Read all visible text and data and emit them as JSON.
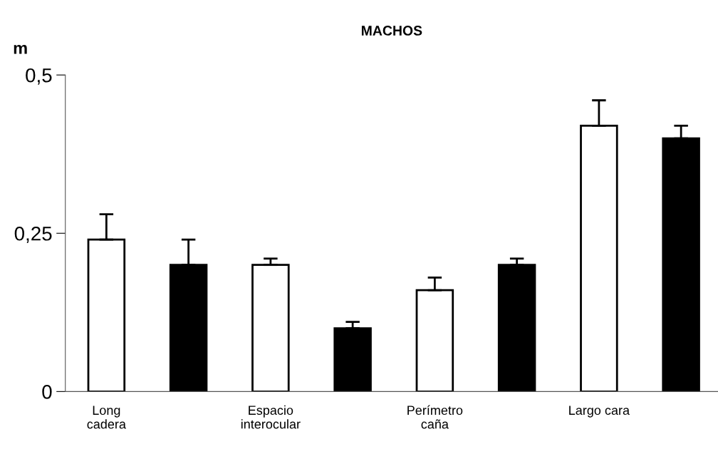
{
  "chart_data": {
    "type": "bar",
    "title": "MACHOS",
    "ylabel": "m",
    "categories": [
      "Long\ncadera",
      null,
      "Espacio\ninterocular",
      null,
      "Perímetro\ncaña",
      null,
      "Largo cara",
      null
    ],
    "values": [
      0.24,
      0.2,
      0.2,
      0.1,
      0.16,
      0.2,
      0.42,
      0.4
    ],
    "colors": [
      "#ffffff",
      "#000000",
      "#ffffff",
      "#000000",
      "#ffffff",
      "#000000",
      "#ffffff",
      "#000000"
    ],
    "errors": [
      [
        0.24,
        0.28
      ],
      [
        0.2,
        0.24
      ],
      [
        0.2,
        0.21
      ],
      [
        0.1,
        0.11
      ],
      [
        0.16,
        0.18
      ],
      [
        0.2,
        0.21
      ],
      [
        0.42,
        0.46
      ],
      [
        0.4,
        0.42
      ]
    ],
    "ylim": [
      0,
      0.5
    ],
    "yticks": [
      {
        "value": 0,
        "label": "0"
      },
      {
        "value": 0.25,
        "label": "0,25"
      },
      {
        "value": 0.5,
        "label": "0,5"
      }
    ],
    "grid": false,
    "legend": false
  }
}
